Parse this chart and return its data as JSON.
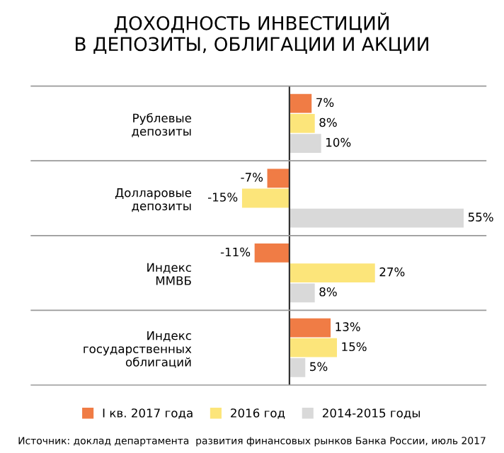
{
  "chart_data": {
    "type": "bar",
    "orientation": "horizontal",
    "title": "ДОХОДНОСТЬ ИНВЕСТИЦИЙ\nВ ДЕПОЗИТЫ, ОБЛИГАЦИИ И АКЦИИ",
    "categories": [
      "Рублевые\nдепозиты",
      "Долларовые\nдепозиты",
      "Индекс\nММВБ",
      "Индекс\nгосударственных\nоблигаций"
    ],
    "series": [
      {
        "name": "I кв. 2017 года",
        "color": "#f07c45",
        "values": [
          7,
          -7,
          -11,
          13
        ],
        "value_labels": [
          "7%",
          "-7%",
          "-11%",
          "13%"
        ]
      },
      {
        "name": "2016 год",
        "color": "#fce57a",
        "values": [
          8,
          -15,
          27,
          15
        ],
        "value_labels": [
          "8%",
          "-15%",
          "27%",
          "15%"
        ]
      },
      {
        "name": "2014-2015 годы",
        "color": "#d9d9d9",
        "values": [
          10,
          55,
          8,
          5
        ],
        "value_labels": [
          "10%",
          "55%",
          "8%",
          "5%"
        ]
      }
    ],
    "tick_labels": "y",
    "grid": "y",
    "legend": "bottom",
    "annotations": [
      "Источник: доклад департамента  развития финансовых рынков Банка России, июль 2017"
    ]
  }
}
